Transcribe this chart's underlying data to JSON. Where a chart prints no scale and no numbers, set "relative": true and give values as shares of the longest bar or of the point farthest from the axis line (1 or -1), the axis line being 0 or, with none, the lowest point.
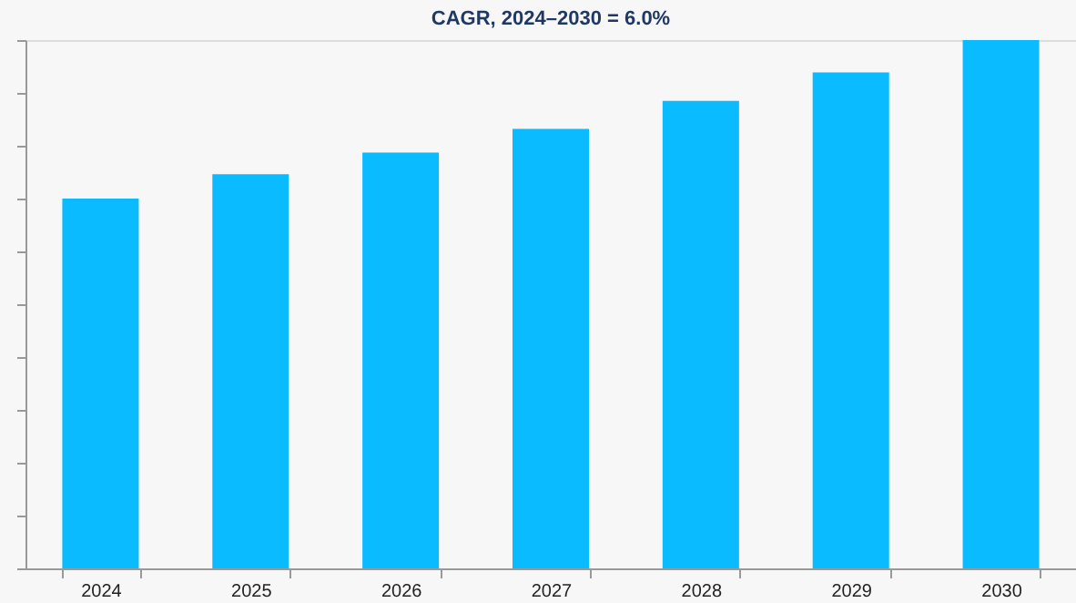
{
  "chart_data": {
    "type": "bar",
    "title": "CAGR, 2024–2030 = 6.0%",
    "categories": [
      "2024",
      "2025",
      "2026",
      "2027",
      "2028",
      "2029",
      "2030"
    ],
    "values": [
      0.7,
      0.746,
      0.787,
      0.832,
      0.885,
      0.939,
      1.0
    ],
    "color": "#0abcff",
    "relative": true,
    "grid": false
  }
}
